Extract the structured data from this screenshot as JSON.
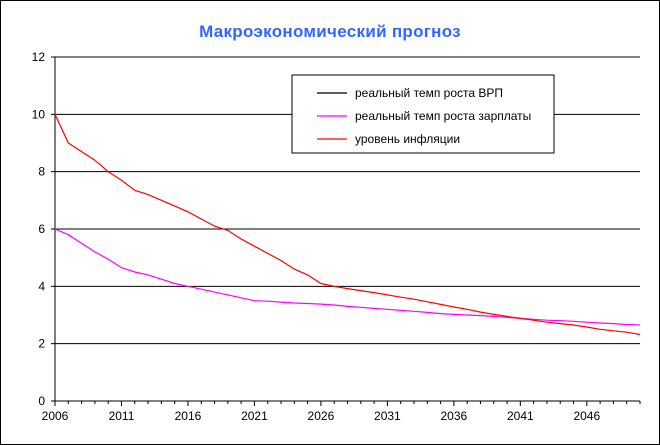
{
  "chart_data": {
    "type": "line",
    "title": "Макроэкономический прогноз",
    "xlabel": "",
    "ylabel": "",
    "xlim": [
      2006,
      2050
    ],
    "ylim": [
      0,
      12
    ],
    "y_ticks": [
      0,
      2,
      4,
      6,
      8,
      10,
      12
    ],
    "x_ticks": [
      2006,
      2011,
      2016,
      2021,
      2026,
      2031,
      2036,
      2041,
      2046
    ],
    "grid": "horizontal",
    "legend_position": "top-right",
    "series": [
      {
        "name": "реальный темп роста ВРП",
        "color": "#000000",
        "x": [],
        "values": []
      },
      {
        "name": "реальный темп роста зарплаты",
        "color": "#ff00ff",
        "x": [
          2006,
          2007,
          2008,
          2009,
          2010,
          2011,
          2012,
          2013,
          2014,
          2015,
          2016,
          2017,
          2018,
          2019,
          2020,
          2021,
          2022,
          2023,
          2024,
          2025,
          2026,
          2027,
          2028,
          2029,
          2030,
          2031,
          2032,
          2033,
          2034,
          2035,
          2036,
          2037,
          2038,
          2039,
          2040,
          2041,
          2042,
          2043,
          2044,
          2045,
          2046,
          2047,
          2048,
          2049,
          2050
        ],
        "values": [
          6.0,
          5.8,
          5.5,
          5.2,
          4.95,
          4.65,
          4.5,
          4.4,
          4.25,
          4.1,
          4.0,
          3.9,
          3.8,
          3.7,
          3.6,
          3.5,
          3.48,
          3.45,
          3.42,
          3.4,
          3.38,
          3.35,
          3.3,
          3.27,
          3.23,
          3.2,
          3.16,
          3.13,
          3.09,
          3.05,
          3.02,
          3.0,
          2.98,
          2.95,
          2.92,
          2.88,
          2.85,
          2.82,
          2.8,
          2.78,
          2.75,
          2.72,
          2.7,
          2.67,
          2.65
        ]
      },
      {
        "name": "уровень инфляции",
        "color": "#ff0000",
        "x": [
          2006,
          2007,
          2008,
          2009,
          2010,
          2011,
          2012,
          2013,
          2014,
          2015,
          2016,
          2017,
          2018,
          2019,
          2020,
          2021,
          2022,
          2023,
          2024,
          2025,
          2026,
          2027,
          2028,
          2029,
          2030,
          2031,
          2032,
          2033,
          2034,
          2035,
          2036,
          2037,
          2038,
          2039,
          2040,
          2041,
          2042,
          2043,
          2044,
          2045,
          2046,
          2047,
          2048,
          2049,
          2050
        ],
        "values": [
          10.0,
          9.0,
          8.7,
          8.4,
          8.0,
          7.7,
          7.35,
          7.2,
          7.0,
          6.8,
          6.6,
          6.35,
          6.1,
          5.95,
          5.65,
          5.4,
          5.15,
          4.9,
          4.6,
          4.4,
          4.1,
          4.0,
          3.92,
          3.85,
          3.78,
          3.7,
          3.62,
          3.55,
          3.46,
          3.37,
          3.28,
          3.2,
          3.1,
          3.02,
          2.95,
          2.88,
          2.82,
          2.75,
          2.7,
          2.65,
          2.58,
          2.5,
          2.45,
          2.4,
          2.32
        ]
      }
    ]
  }
}
